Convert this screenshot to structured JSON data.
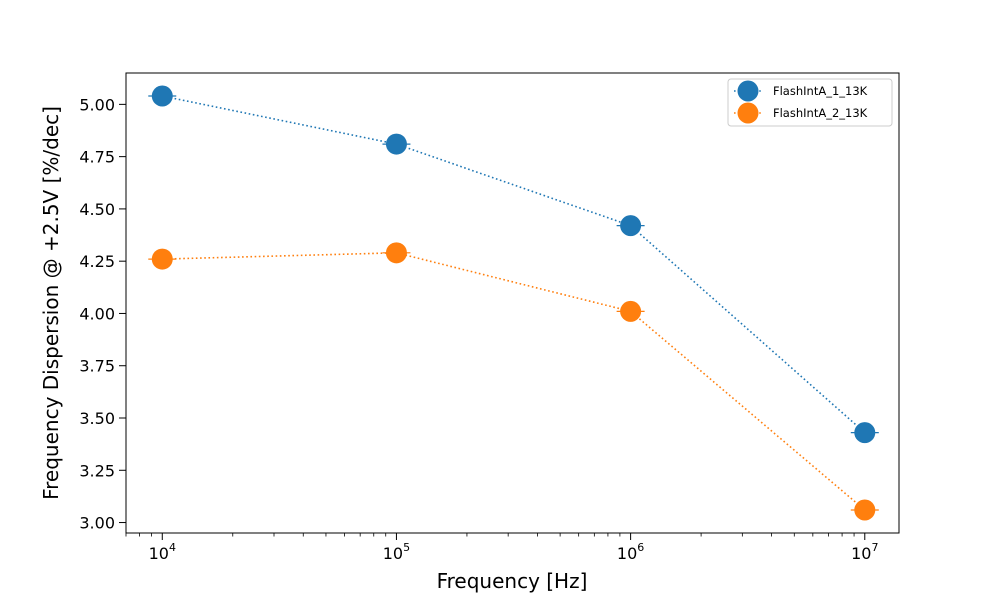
{
  "chart_data": {
    "type": "line",
    "x_scale": "log",
    "x": [
      10000,
      100000,
      1000000,
      10000000
    ],
    "x_tick_labels": [
      {
        "value": 10000,
        "base": "10",
        "exp": "4"
      },
      {
        "value": 100000,
        "base": "10",
        "exp": "5"
      },
      {
        "value": 1000000,
        "base": "10",
        "exp": "6"
      },
      {
        "value": 10000000,
        "base": "10",
        "exp": "7"
      }
    ],
    "xlabel": "Frequency [Hz]",
    "ylabel": "Frequency Dispersion @ +2.5V [%/dec]",
    "xlim": [
      7000,
      14000000
    ],
    "ylim": [
      2.95,
      5.15
    ],
    "y_ticks": [
      "3.00",
      "3.25",
      "3.50",
      "3.75",
      "4.00",
      "4.25",
      "4.50",
      "4.75",
      "5.00"
    ],
    "grid": false,
    "legend_position": "top-right",
    "series": [
      {
        "name": "FlashIntA_1_13K",
        "color": "#1f77b4",
        "values": [
          5.04,
          4.81,
          4.42,
          3.43
        ]
      },
      {
        "name": "FlashIntA_2_13K",
        "color": "#ff7f0e",
        "values": [
          4.26,
          4.29,
          4.01,
          3.06
        ]
      }
    ]
  }
}
